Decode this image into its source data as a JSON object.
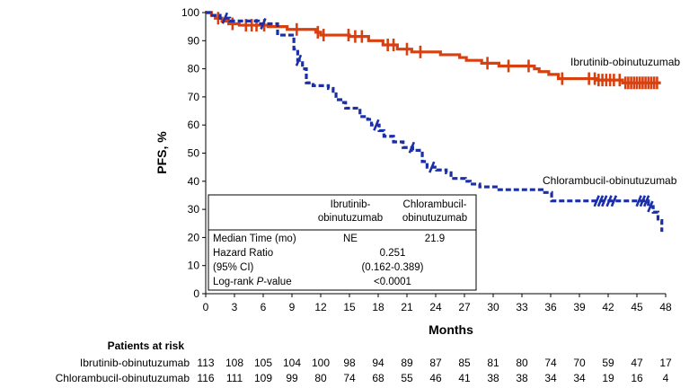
{
  "chart_data": {
    "type": "line",
    "title": "",
    "xlabel": "Months",
    "ylabel": "PFS, %",
    "xlim": [
      0,
      48
    ],
    "ylim": [
      0,
      100
    ],
    "xticks": [
      0,
      3,
      6,
      9,
      12,
      15,
      18,
      21,
      24,
      27,
      30,
      33,
      36,
      39,
      42,
      45,
      48
    ],
    "yticks": [
      0,
      10,
      20,
      30,
      40,
      50,
      60,
      70,
      80,
      90,
      100
    ],
    "grid": false,
    "series": [
      {
        "name": "Ibrutinib-obinutuzumab",
        "label": "Ibrutinib-obinutuzumab",
        "color": "#d94010",
        "style": "solid",
        "steps": [
          [
            0,
            100
          ],
          [
            0.6,
            99
          ],
          [
            1,
            98
          ],
          [
            1.7,
            97
          ],
          [
            2.4,
            96
          ],
          [
            3.5,
            95.5
          ],
          [
            6.5,
            95
          ],
          [
            8.5,
            94
          ],
          [
            11.5,
            93
          ],
          [
            12,
            92
          ],
          [
            15,
            91.5
          ],
          [
            17,
            90
          ],
          [
            18.5,
            88.5
          ],
          [
            20,
            87
          ],
          [
            21.5,
            86
          ],
          [
            24.5,
            85
          ],
          [
            26.5,
            84
          ],
          [
            27.2,
            83
          ],
          [
            28.8,
            82
          ],
          [
            30.6,
            81
          ],
          [
            34.3,
            80
          ],
          [
            34.8,
            79
          ],
          [
            35.8,
            78
          ],
          [
            36.8,
            76.5
          ],
          [
            40.8,
            76
          ],
          [
            43.5,
            75
          ],
          [
            47.5,
            75
          ]
        ],
        "censor": [
          1.3,
          2.8,
          4.2,
          4.8,
          5.3,
          6.1,
          9.5,
          11.7,
          12.3,
          14.9,
          15.6,
          16.3,
          19.0,
          19.6,
          21.0,
          22.4,
          29.4,
          31.6,
          33.7,
          37.2,
          40.0,
          40.6,
          41.0,
          41.4,
          41.8,
          42.2,
          42.6,
          43.2,
          43.8,
          44.1,
          44.4,
          44.7,
          45.0,
          45.3,
          45.6,
          45.9,
          46.2,
          46.5,
          46.8,
          47.1
        ]
      },
      {
        "name": "Chlorambucil-obinutuzumab",
        "label": "Chlorambucil-obinutuzumab",
        "color": "#1a2fa8",
        "style": "dashed",
        "steps": [
          [
            0,
            100
          ],
          [
            0.5,
            99
          ],
          [
            1.5,
            98
          ],
          [
            2.5,
            97
          ],
          [
            5.5,
            96
          ],
          [
            7.5,
            92
          ],
          [
            9.2,
            87
          ],
          [
            9.6,
            83
          ],
          [
            10.1,
            80
          ],
          [
            10.5,
            75
          ],
          [
            11.2,
            74
          ],
          [
            12.8,
            73
          ],
          [
            13.3,
            72
          ],
          [
            13.6,
            69
          ],
          [
            14.1,
            68
          ],
          [
            14.6,
            66
          ],
          [
            16.1,
            63
          ],
          [
            16.9,
            62
          ],
          [
            17.3,
            60
          ],
          [
            18.1,
            58
          ],
          [
            18.6,
            56
          ],
          [
            19.6,
            54
          ],
          [
            20.6,
            52
          ],
          [
            21.6,
            51
          ],
          [
            22.3,
            50
          ],
          [
            22.6,
            47
          ],
          [
            23.1,
            45
          ],
          [
            24.1,
            44
          ],
          [
            25.1,
            43
          ],
          [
            25.6,
            41
          ],
          [
            27.1,
            40
          ],
          [
            27.6,
            39
          ],
          [
            28.6,
            38
          ],
          [
            30.6,
            37
          ],
          [
            35.1,
            36
          ],
          [
            36.1,
            33
          ],
          [
            40.6,
            33
          ],
          [
            46.2,
            31
          ],
          [
            46.7,
            29
          ],
          [
            47.2,
            26
          ],
          [
            47.6,
            22
          ]
        ],
        "censor": [
          2.0,
          6.0,
          9.7,
          17.8,
          21.5,
          23.6,
          40.8,
          41.2,
          41.6,
          42.1,
          42.6,
          45.2,
          45.6,
          46.0,
          46.4
        ]
      }
    ],
    "stats_box": {
      "col1_header_line1": "Ibrutinib-",
      "col1_header_line2": "obinutuzumab",
      "col2_header_line1": "Chlorambucil-",
      "col2_header_line2": "obinutuzumab",
      "median_label": "Median Time (mo)",
      "median_val1": "NE",
      "median_val2": "21.9",
      "hr_label": "Hazard Ratio",
      "hr_value": "0.251",
      "ci_label": "(95% CI)",
      "ci_value": "(0.162-0.389)",
      "logrank_label_prefix": "Log-rank ",
      "logrank_label_p": "P",
      "logrank_label_suffix": "-value",
      "logrank_value": "<0.0001"
    },
    "risk_table": {
      "title": "Patients at risk",
      "timepoints": [
        0,
        3,
        6,
        9,
        12,
        15,
        18,
        21,
        24,
        27,
        30,
        33,
        36,
        39,
        42,
        45,
        48
      ],
      "rows": [
        {
          "label": "Ibrutinib-obinutuzumab",
          "values": [
            113,
            108,
            105,
            104,
            100,
            98,
            94,
            89,
            87,
            85,
            81,
            80,
            74,
            70,
            59,
            47,
            17
          ]
        },
        {
          "label": "Chlorambucil-obinutuzumab",
          "values": [
            116,
            111,
            109,
            99,
            80,
            74,
            68,
            55,
            46,
            41,
            38,
            38,
            34,
            34,
            19,
            16,
            4
          ]
        }
      ]
    }
  }
}
